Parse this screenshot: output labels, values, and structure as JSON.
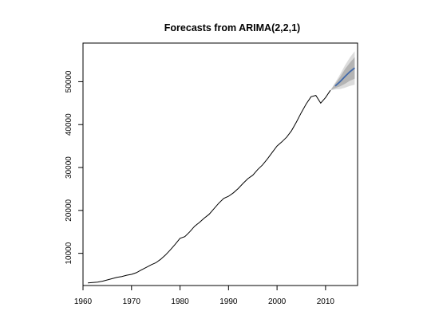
{
  "chart_data": {
    "type": "line",
    "title": "Forecasts from ARIMA(2,2,1)",
    "xlabel": "",
    "ylabel": "",
    "xlim": [
      1960,
      2016.6
    ],
    "ylim": [
      2500,
      59000
    ],
    "x_ticks": [
      1960,
      1970,
      1980,
      1990,
      2000,
      2010
    ],
    "y_ticks": [
      10000,
      20000,
      30000,
      40000,
      50000
    ],
    "grid": false,
    "colors": {
      "history": "#000000",
      "forecast": "#4169aa",
      "band_95": "#dcdcdc",
      "band_80": "#b4b4b4"
    },
    "series": [
      {
        "role": "history",
        "x": [
          1961,
          1962,
          1963,
          1964,
          1965,
          1966,
          1967,
          1968,
          1969,
          1970,
          1971,
          1972,
          1973,
          1974,
          1975,
          1976,
          1977,
          1978,
          1979,
          1980,
          1981,
          1982,
          1983,
          1984,
          1985,
          1986,
          1987,
          1988,
          1989,
          1990,
          1991,
          1992,
          1993,
          1994,
          1995,
          1996,
          1997,
          1998,
          1999,
          2000,
          2001,
          2002,
          2003,
          2004,
          2005,
          2006,
          2007,
          2008,
          2009,
          2010,
          2011
        ],
        "y": [
          3100,
          3200,
          3300,
          3500,
          3800,
          4100,
          4400,
          4600,
          4900,
          5100,
          5500,
          6100,
          6700,
          7300,
          7800,
          8600,
          9600,
          10800,
          12100,
          13500,
          13900,
          15000,
          16300,
          17200,
          18200,
          19100,
          20400,
          21700,
          22800,
          23300,
          24100,
          25100,
          26300,
          27400,
          28200,
          29500,
          30600,
          32000,
          33500,
          35000,
          36000,
          37100,
          38600,
          40600,
          42800,
          44800,
          46500,
          46800,
          45000,
          46300,
          48000
        ]
      },
      {
        "role": "forecast",
        "x": [
          2012,
          2013,
          2014,
          2015,
          2016
        ],
        "y": [
          49000,
          50000,
          51200,
          52300,
          53200
        ],
        "lo80": [
          48500,
          48900,
          49500,
          50200,
          50700
        ],
        "hi80": [
          49500,
          51100,
          52900,
          54400,
          55700
        ],
        "lo95": [
          48200,
          48300,
          48600,
          49000,
          49300
        ],
        "hi95": [
          49800,
          51700,
          53800,
          55600,
          57100
        ]
      }
    ]
  }
}
